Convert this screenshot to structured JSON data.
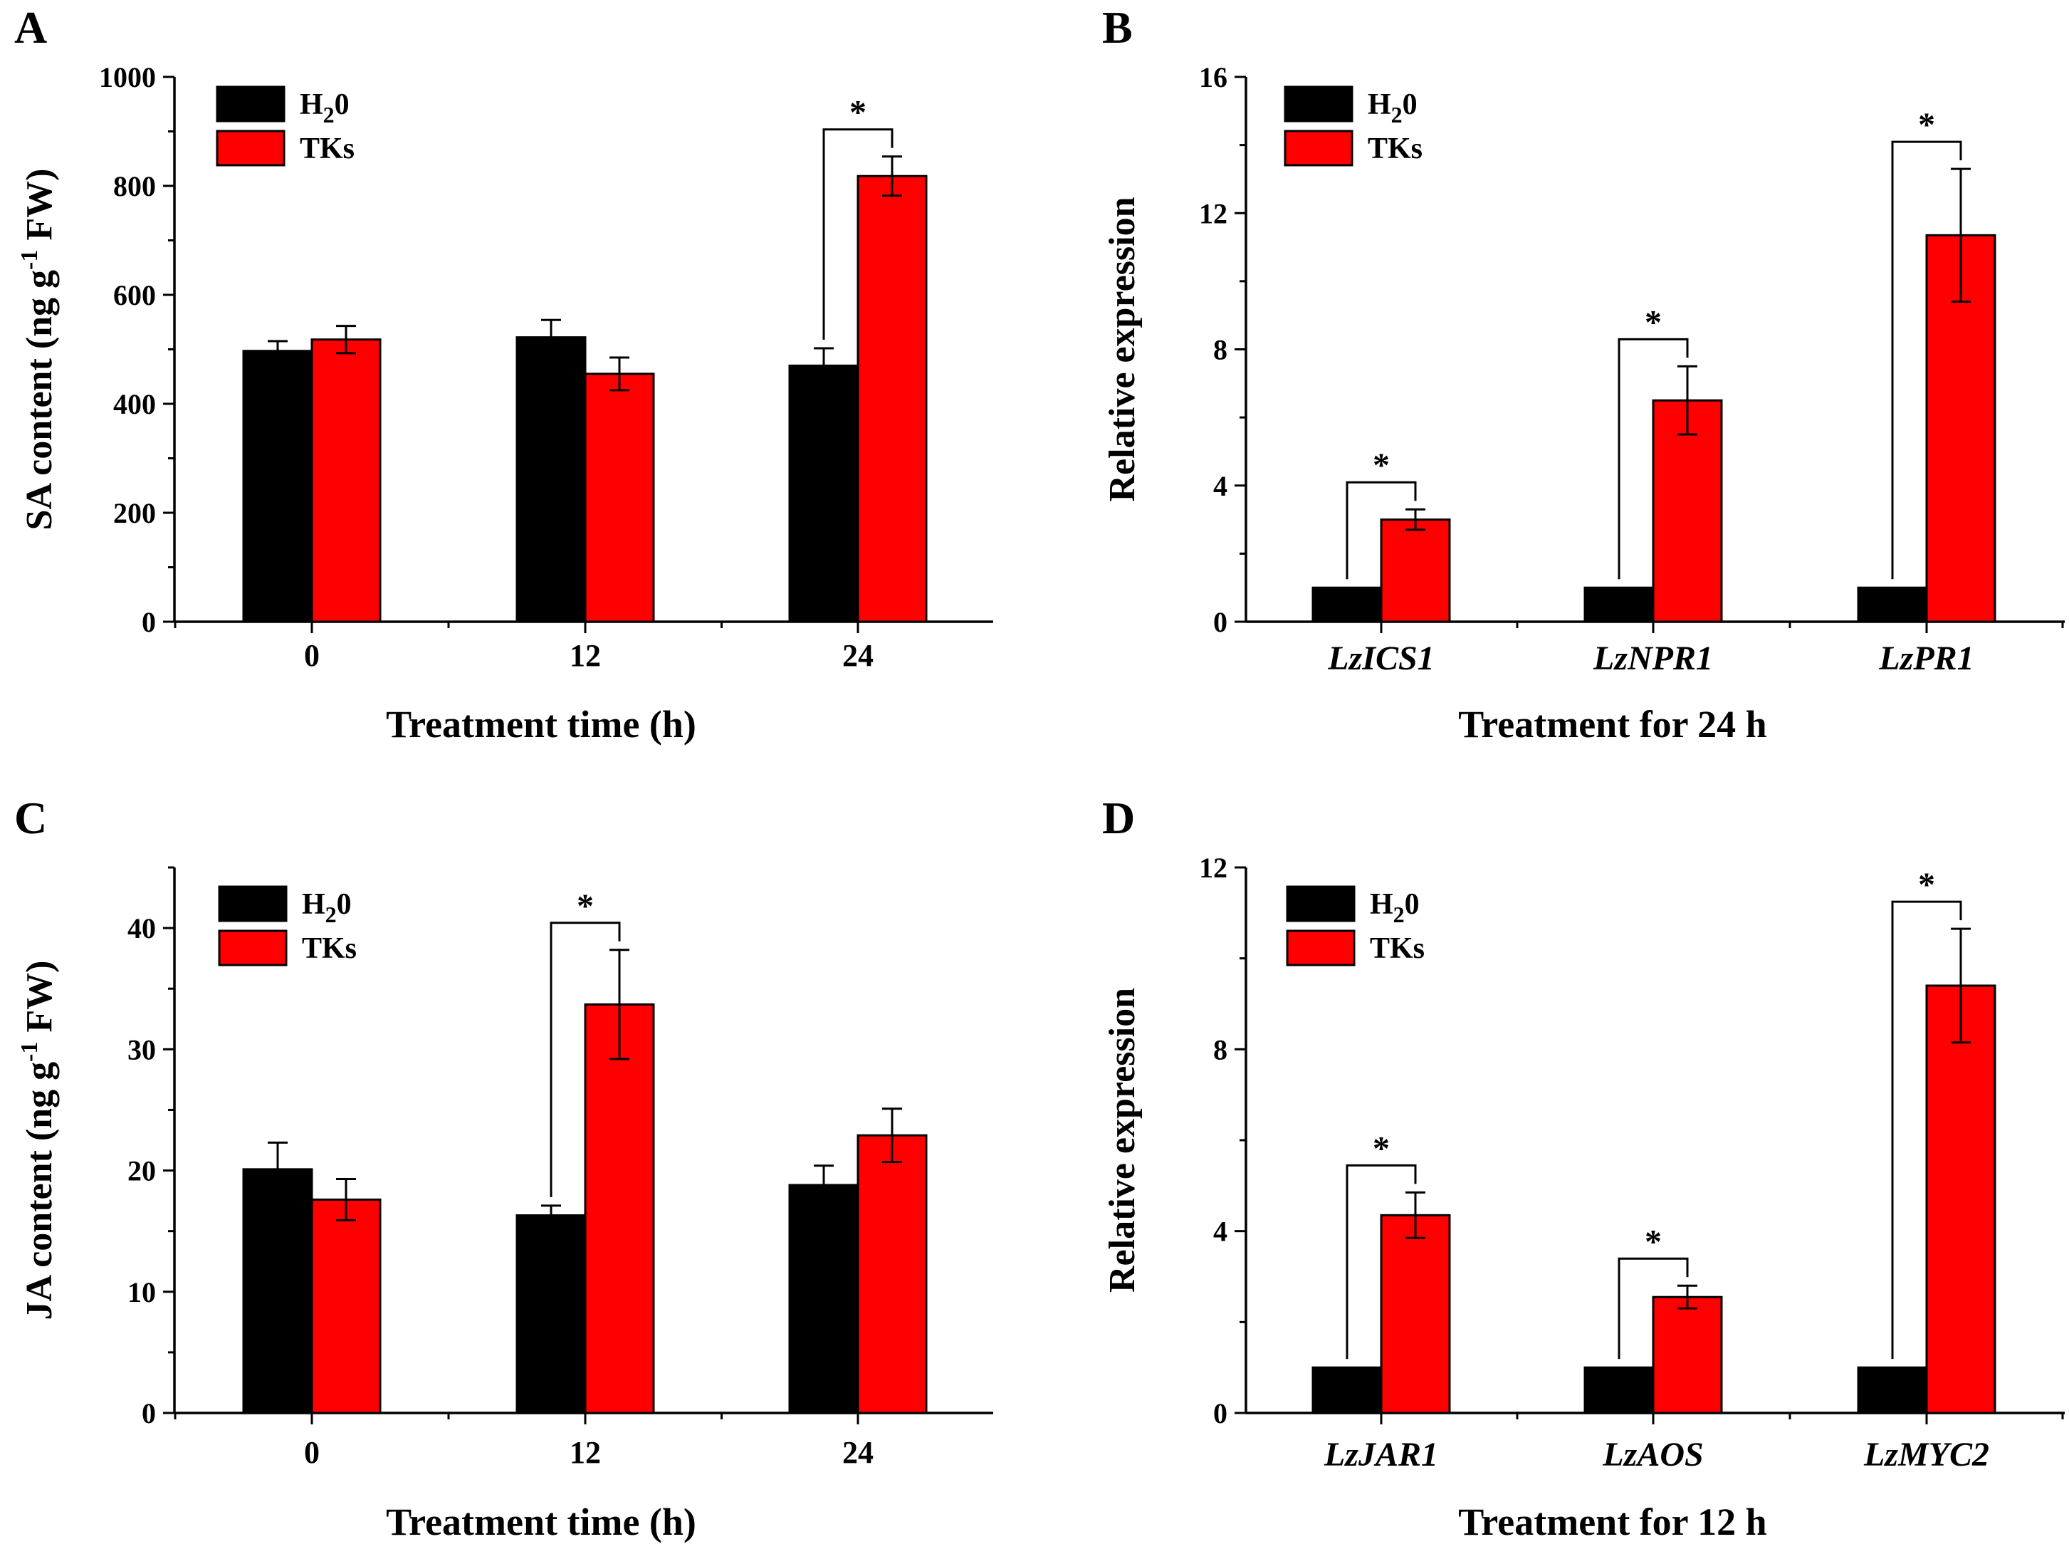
{
  "colors": {
    "h2o": "#000000",
    "tks": "#ff0000"
  },
  "chart_data": [
    {
      "panel": "A",
      "type": "bar",
      "ylabel_main": "SA content (ng g",
      "ylabel_sup": "-1",
      "ylabel_end": " FW)",
      "xlabel": "Treatment time (h)",
      "xlabel_italic": false,
      "categories": [
        "0",
        "12",
        "24"
      ],
      "ylim": [
        0,
        1000
      ],
      "yticks": [
        "0",
        "200",
        "400",
        "600",
        "800",
        "1000"
      ],
      "legend": {
        "h2o_main": "H",
        "h2o_sub": "2",
        "h2o_end": "0",
        "tks": "TKs"
      },
      "series": [
        {
          "name": "H2O",
          "values": [
            497,
            522,
            470
          ],
          "errors": [
            18,
            32,
            32
          ]
        },
        {
          "name": "TKs",
          "values": [
            518,
            455,
            818
          ],
          "errors": [
            25,
            30,
            36
          ]
        }
      ],
      "significance": [
        {
          "category": "24",
          "mark": "*"
        }
      ]
    },
    {
      "panel": "B",
      "type": "bar",
      "ylabel_main": "Relative expression",
      "xlabel": "Treatment for 24 h",
      "xlabel_italic": true,
      "categories": [
        "LzICS1",
        "LzNPR1",
        "LzPR1"
      ],
      "ylim": [
        0,
        16
      ],
      "yticks": [
        "0",
        "4",
        "8",
        "12",
        "16"
      ],
      "legend": {
        "h2o_main": "H",
        "h2o_sub": "2",
        "h2o_end": "0",
        "tks": "TKs"
      },
      "series": [
        {
          "name": "H2O",
          "values": [
            1,
            1,
            1
          ],
          "errors": [
            0,
            0,
            0
          ]
        },
        {
          "name": "TKs",
          "values": [
            3.0,
            6.5,
            11.35
          ],
          "errors": [
            0.3,
            1.0,
            1.95
          ]
        }
      ],
      "significance": [
        {
          "category": "LzICS1",
          "mark": "*"
        },
        {
          "category": "LzNPR1",
          "mark": "*"
        },
        {
          "category": "LzPR1",
          "mark": "*"
        }
      ]
    },
    {
      "panel": "C",
      "type": "bar",
      "ylabel_main": "JA content (ng g",
      "ylabel_sup": "-1",
      "ylabel_end": " FW)",
      "xlabel": "Treatment time (h)",
      "xlabel_italic": false,
      "categories": [
        "0",
        "12",
        "24"
      ],
      "ylim": [
        0,
        45
      ],
      "yticks": [
        "0",
        "10",
        "20",
        "30",
        "40"
      ],
      "legend": {
        "h2o_main": "H",
        "h2o_sub": "2",
        "h2o_end": "0",
        "tks": "TKs"
      },
      "series": [
        {
          "name": "H2O",
          "values": [
            20.1,
            16.3,
            18.8
          ],
          "errors": [
            2.2,
            0.8,
            1.6
          ]
        },
        {
          "name": "TKs",
          "values": [
            17.6,
            33.7,
            22.9
          ],
          "errors": [
            1.7,
            4.5,
            2.2
          ]
        }
      ],
      "significance": [
        {
          "category": "12",
          "mark": "*"
        }
      ]
    },
    {
      "panel": "D",
      "type": "bar",
      "ylabel_main": "Relative expression",
      "xlabel": "Treatment for 12 h",
      "xlabel_italic": true,
      "categories": [
        "LzJAR1",
        "LzAOS",
        "LzMYC2"
      ],
      "ylim": [
        0,
        12
      ],
      "yticks": [
        "0",
        "4",
        "8",
        "12"
      ],
      "legend": {
        "h2o_main": "H",
        "h2o_sub": "2",
        "h2o_end": "0",
        "tks": "TKs"
      },
      "series": [
        {
          "name": "H2O",
          "values": [
            1,
            1,
            1
          ],
          "errors": [
            0,
            0,
            0
          ]
        },
        {
          "name": "TKs",
          "values": [
            4.35,
            2.55,
            9.4
          ],
          "errors": [
            0.5,
            0.25,
            1.25
          ]
        }
      ],
      "significance": [
        {
          "category": "LzJAR1",
          "mark": "*"
        },
        {
          "category": "LzAOS",
          "mark": "*"
        },
        {
          "category": "LzMYC2",
          "mark": "*"
        }
      ]
    }
  ]
}
